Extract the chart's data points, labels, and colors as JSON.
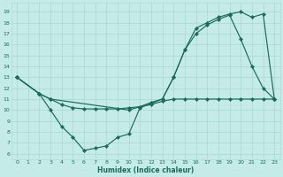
{
  "xlabel": "Humidex (Indice chaleur)",
  "bg_color": "#c5ebe8",
  "grid_color": "#a8d8d4",
  "line_color": "#1a6b5a",
  "line1_x": [
    0,
    2,
    3,
    10,
    11,
    12,
    13,
    14,
    15,
    16,
    17,
    18,
    19,
    20,
    21,
    22,
    23
  ],
  "line1_y": [
    13,
    11.5,
    11,
    10.0,
    10.3,
    10.7,
    11.0,
    13.0,
    15.5,
    17.0,
    17.8,
    18.3,
    18.7,
    16.5,
    14.0,
    12.0,
    11.0
  ],
  "line2_x": [
    0,
    2,
    3,
    4,
    5,
    6,
    7,
    8,
    9,
    10,
    11,
    12,
    13,
    14,
    15,
    16,
    17,
    18,
    19,
    20,
    21,
    22,
    23
  ],
  "line2_y": [
    13,
    11.5,
    11,
    10.5,
    10.2,
    10.1,
    10.1,
    10.1,
    10.1,
    10.2,
    10.3,
    10.5,
    10.8,
    11.0,
    11.0,
    11.0,
    11.0,
    11.0,
    11.0,
    11.0,
    11.0,
    11.0,
    11.0
  ],
  "line3_x": [
    0,
    2,
    3,
    4,
    5,
    6,
    7,
    8,
    9,
    10,
    11,
    13,
    14,
    15,
    16,
    17,
    18,
    19,
    20,
    21,
    22,
    23
  ],
  "line3_y": [
    13,
    11.5,
    10.0,
    8.5,
    7.5,
    6.3,
    6.5,
    6.7,
    7.5,
    7.8,
    10.2,
    11.0,
    13.0,
    15.5,
    17.5,
    18.0,
    18.5,
    18.8,
    19.0,
    18.5,
    18.8,
    11.0
  ],
  "xlim": [
    -0.5,
    23.5
  ],
  "ylim": [
    5.5,
    19.8
  ],
  "xticks": [
    0,
    1,
    2,
    3,
    4,
    5,
    6,
    7,
    8,
    9,
    10,
    11,
    12,
    13,
    14,
    15,
    16,
    17,
    18,
    19,
    20,
    21,
    22,
    23
  ],
  "yticks": [
    6,
    7,
    8,
    9,
    10,
    11,
    12,
    13,
    14,
    15,
    16,
    17,
    18,
    19
  ]
}
